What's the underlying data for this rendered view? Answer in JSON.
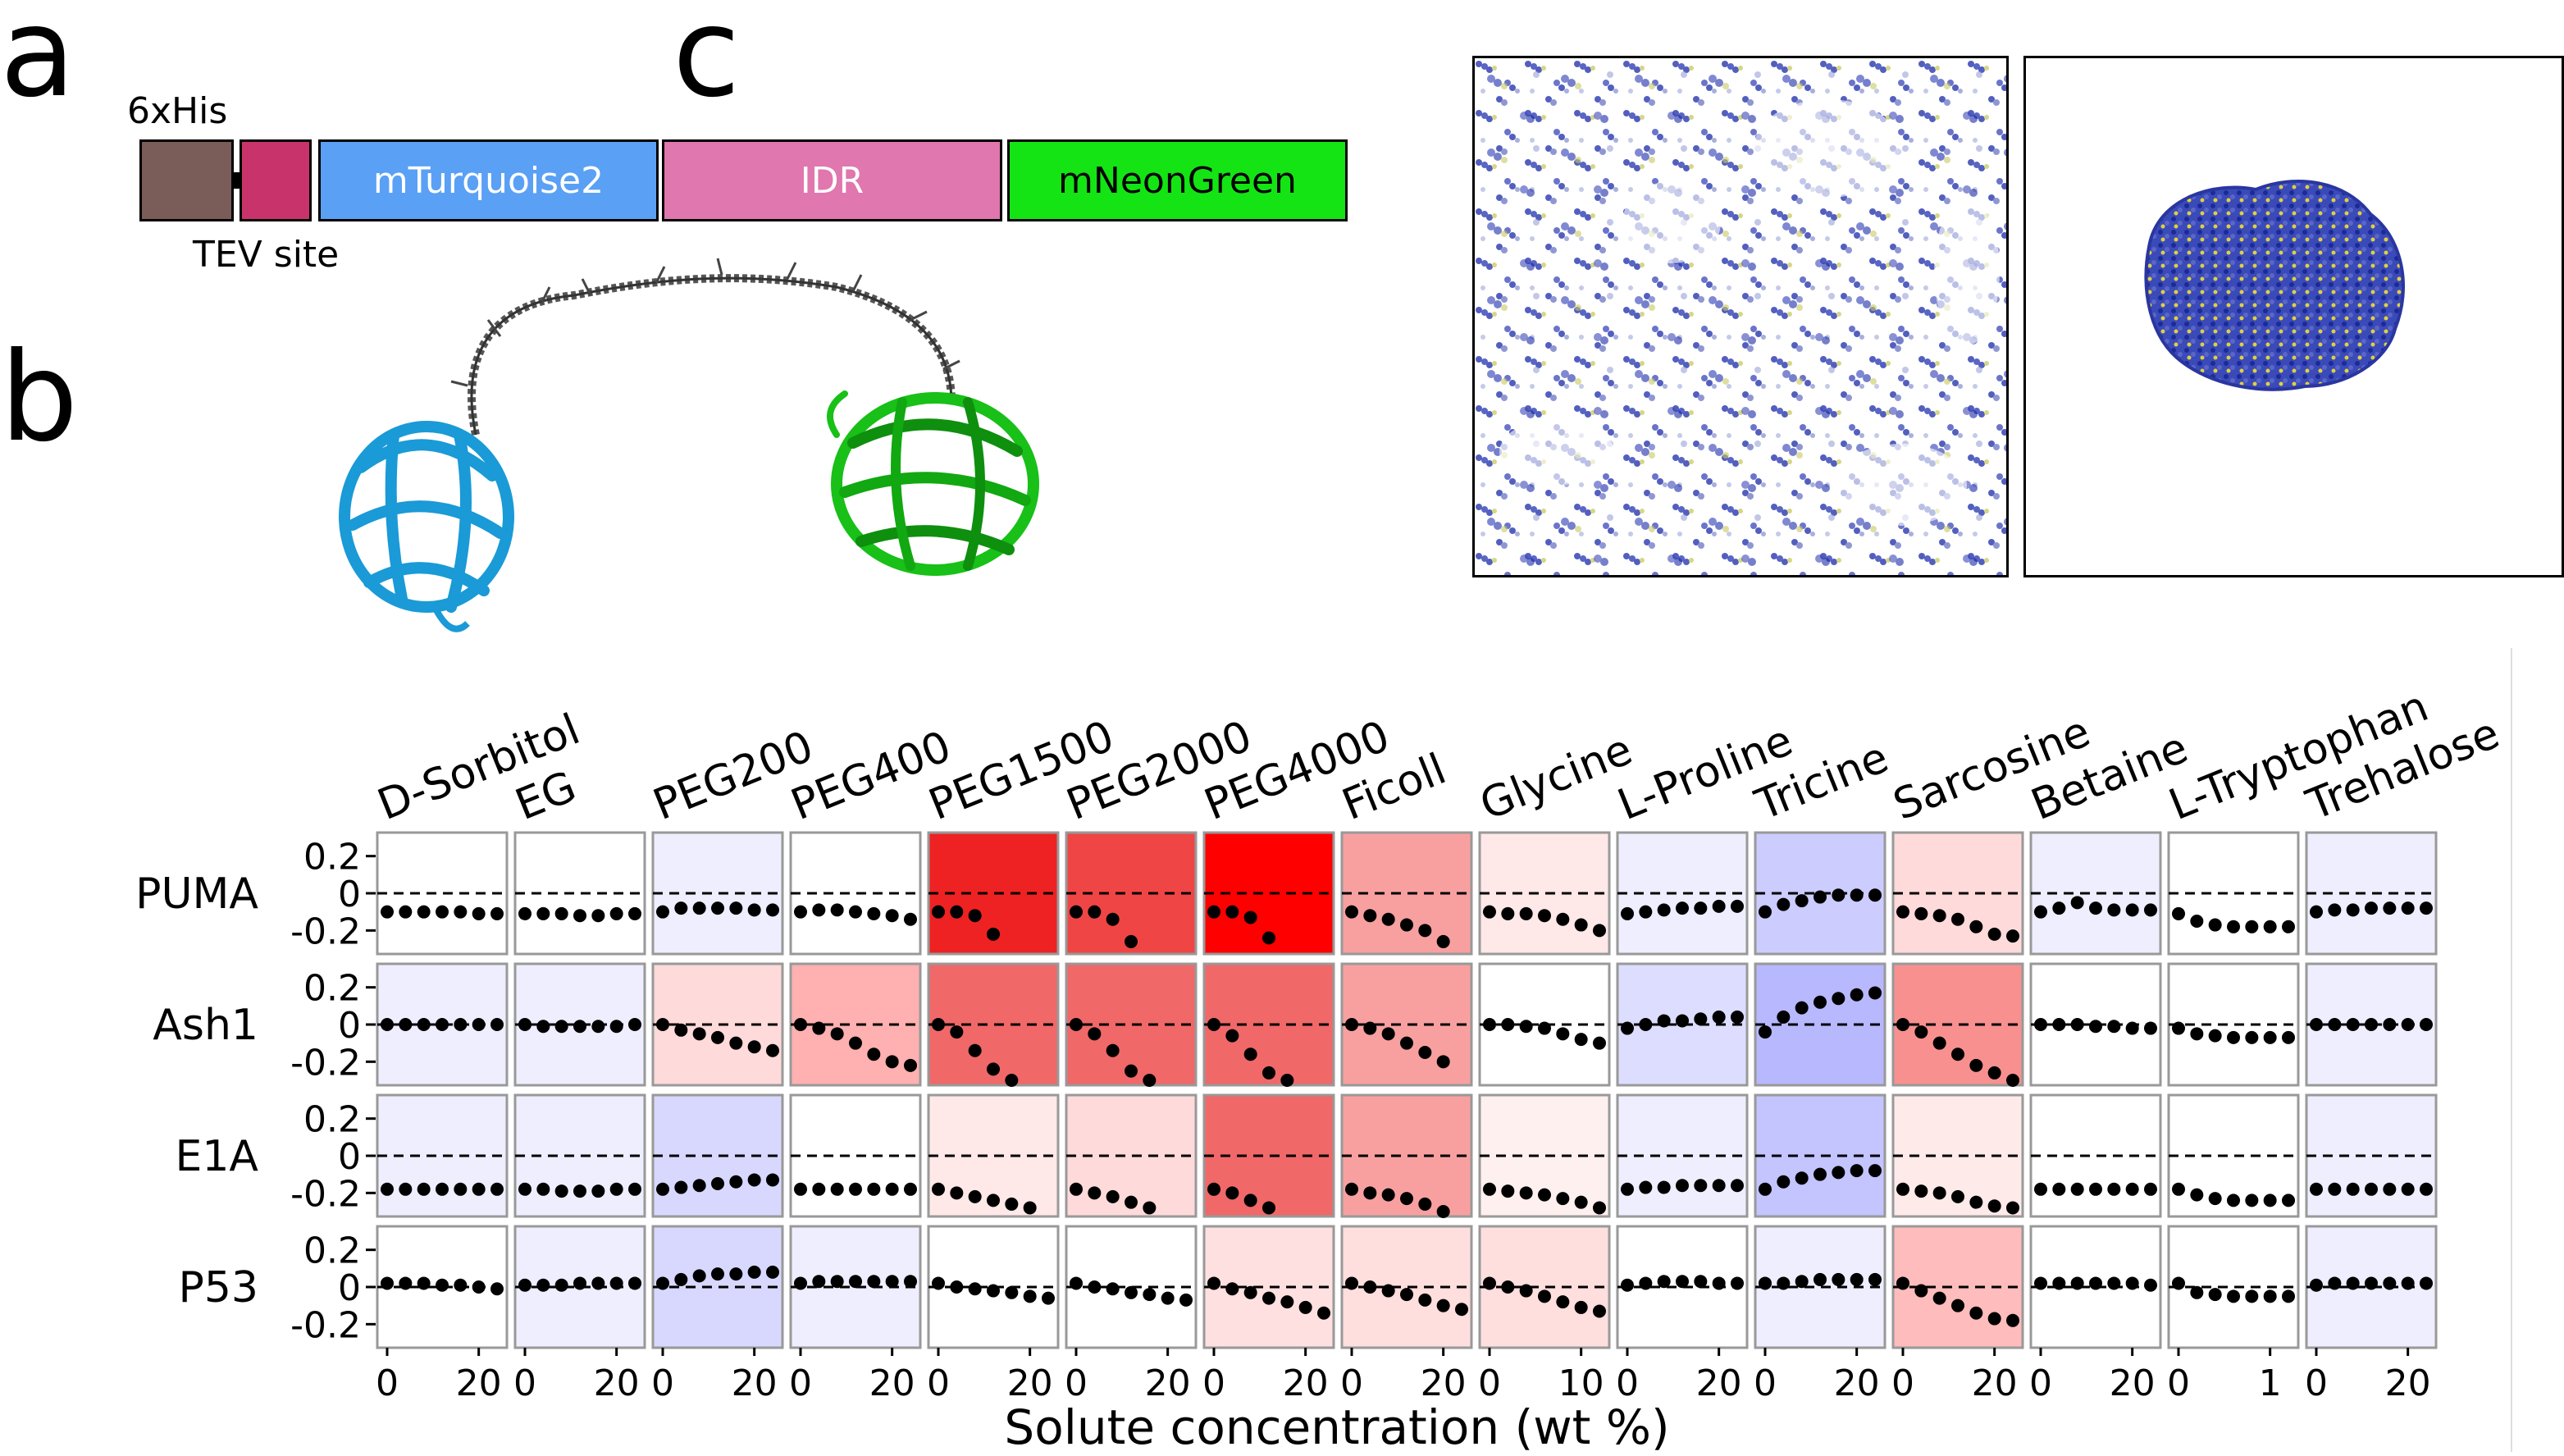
{
  "panels": {
    "a": "a",
    "b": "b",
    "c": "c"
  },
  "construct": {
    "his_label": "6xHis",
    "tev_label": "TEV site",
    "segments": [
      {
        "label": "",
        "color": "#7a5c58"
      },
      {
        "label": "",
        "color": "#c8336b"
      },
      {
        "label": "mTurquoise2",
        "color": "#5aa0f5"
      },
      {
        "label": "IDR",
        "color": "#e077ae"
      },
      {
        "label": "mNeonGreen",
        "color": "#14e414"
      }
    ]
  },
  "chart_data": {
    "type": "scatter",
    "xlabel": "Solute concentration (wt %)",
    "columns": [
      "D-Sorbitol",
      "EG",
      "PEG200",
      "PEG400",
      "PEG1500",
      "PEG2000",
      "PEG4000",
      "Ficoll",
      "Glycine",
      "L-Proline",
      "Tricine",
      "Sarcosine",
      "Betaine",
      "L-Tryptophan",
      "Trehalose"
    ],
    "rows": [
      "PUMA",
      "Ash1",
      "E1A",
      "P53"
    ],
    "yticks": [
      "0.2",
      "0",
      "-0.2"
    ],
    "ylim": [
      -0.3,
      0.3
    ],
    "x_ticks": [
      [
        "0",
        "20"
      ],
      [
        "0",
        "20"
      ],
      [
        "0",
        "20"
      ],
      [
        "0",
        "20"
      ],
      [
        "0",
        "20"
      ],
      [
        "0",
        "20"
      ],
      [
        "0",
        "20"
      ],
      [
        "0",
        "20"
      ],
      [
        "0",
        "10"
      ],
      [
        "0",
        "20"
      ],
      [
        "0",
        "20"
      ],
      [
        "0",
        "20"
      ],
      [
        "0",
        "20"
      ],
      [
        "0",
        "1"
      ],
      [
        "0",
        "20"
      ]
    ],
    "cells": [
      [
        {
          "bg": "#ffffff",
          "y": [
            -0.1,
            -0.1,
            -0.1,
            -0.1,
            -0.1,
            -0.11,
            -0.11
          ]
        },
        {
          "bg": "#ffffff",
          "y": [
            -0.11,
            -0.11,
            -0.11,
            -0.12,
            -0.12,
            -0.11,
            -0.11
          ]
        },
        {
          "bg": "#eeeeff",
          "y": [
            -0.1,
            -0.08,
            -0.08,
            -0.08,
            -0.08,
            -0.09,
            -0.09
          ]
        },
        {
          "bg": "#ffffff",
          "y": [
            -0.1,
            -0.09,
            -0.09,
            -0.1,
            -0.11,
            -0.12,
            -0.14
          ]
        },
        {
          "bg": "#ee2222",
          "y": [
            -0.1,
            -0.1,
            -0.12,
            -0.22
          ]
        },
        {
          "bg": "#f04545",
          "y": [
            -0.1,
            -0.1,
            -0.14,
            -0.26
          ]
        },
        {
          "bg": "#ff0000",
          "y": [
            -0.1,
            -0.1,
            -0.13,
            -0.24
          ]
        },
        {
          "bg": "#f8a0a0",
          "y": [
            -0.1,
            -0.12,
            -0.14,
            -0.17,
            -0.2,
            -0.26
          ]
        },
        {
          "bg": "#ffe8e8",
          "y": [
            -0.1,
            -0.11,
            -0.11,
            -0.12,
            -0.14,
            -0.17,
            -0.2
          ]
        },
        {
          "bg": "#eeeeff",
          "y": [
            -0.11,
            -0.1,
            -0.09,
            -0.08,
            -0.08,
            -0.07,
            -0.07
          ]
        },
        {
          "bg": "#ccccff",
          "y": [
            -0.1,
            -0.06,
            -0.04,
            -0.02,
            -0.01,
            -0.01,
            -0.01
          ]
        },
        {
          "bg": "#ffdada",
          "y": [
            -0.1,
            -0.11,
            -0.12,
            -0.14,
            -0.18,
            -0.22,
            -0.23
          ]
        },
        {
          "bg": "#eeeeff",
          "y": [
            -0.1,
            -0.08,
            -0.05,
            -0.08,
            -0.09,
            -0.09,
            -0.09
          ]
        },
        {
          "bg": "#ffffff",
          "y": [
            -0.11,
            -0.15,
            -0.17,
            -0.18,
            -0.18,
            -0.18,
            -0.18
          ]
        },
        {
          "bg": "#eeeeff",
          "y": [
            -0.1,
            -0.09,
            -0.09,
            -0.08,
            -0.08,
            -0.08,
            -0.08
          ]
        }
      ],
      [
        {
          "bg": "#eeeeff",
          "y": [
            0.0,
            0.0,
            0.0,
            0.0,
            0.0,
            0.0,
            0.0
          ]
        },
        {
          "bg": "#eeeeff",
          "y": [
            0.0,
            -0.01,
            -0.01,
            -0.01,
            -0.01,
            -0.01,
            0.0
          ]
        },
        {
          "bg": "#ffdada",
          "y": [
            0.0,
            -0.03,
            -0.05,
            -0.07,
            -0.1,
            -0.12,
            -0.14
          ]
        },
        {
          "bg": "#ffb0b0",
          "y": [
            0.0,
            -0.02,
            -0.05,
            -0.1,
            -0.16,
            -0.2,
            -0.22
          ]
        },
        {
          "bg": "#f06868",
          "y": [
            0.0,
            -0.04,
            -0.14,
            -0.24,
            -0.3
          ]
        },
        {
          "bg": "#f06868",
          "y": [
            0.0,
            -0.05,
            -0.14,
            -0.25,
            -0.3
          ]
        },
        {
          "bg": "#f06868",
          "y": [
            0.0,
            -0.06,
            -0.16,
            -0.26,
            -0.3
          ]
        },
        {
          "bg": "#f8a0a0",
          "y": [
            0.0,
            -0.02,
            -0.05,
            -0.1,
            -0.15,
            -0.2
          ]
        },
        {
          "bg": "#ffffff",
          "y": [
            0.0,
            0.0,
            -0.01,
            -0.02,
            -0.05,
            -0.08,
            -0.1
          ]
        },
        {
          "bg": "#ddddff",
          "y": [
            -0.02,
            0.0,
            0.02,
            0.02,
            0.03,
            0.04,
            0.04
          ]
        },
        {
          "bg": "#b8b8ff",
          "y": [
            -0.04,
            0.04,
            0.09,
            0.12,
            0.14,
            0.16,
            0.17
          ]
        },
        {
          "bg": "#f89090",
          "y": [
            0.0,
            -0.04,
            -0.1,
            -0.16,
            -0.22,
            -0.26,
            -0.3
          ]
        },
        {
          "bg": "#ffffff",
          "y": [
            0.0,
            0.0,
            0.0,
            -0.01,
            -0.01,
            -0.02,
            -0.02
          ]
        },
        {
          "bg": "#ffffff",
          "y": [
            -0.02,
            -0.05,
            -0.06,
            -0.07,
            -0.07,
            -0.07,
            -0.07
          ]
        },
        {
          "bg": "#eeeeff",
          "y": [
            0.0,
            0.0,
            0.0,
            0.0,
            0.0,
            0.0,
            0.0
          ]
        }
      ],
      [
        {
          "bg": "#eeeeff",
          "y": [
            -0.18,
            -0.18,
            -0.18,
            -0.18,
            -0.18,
            -0.18,
            -0.18
          ]
        },
        {
          "bg": "#eeeeff",
          "y": [
            -0.18,
            -0.18,
            -0.19,
            -0.19,
            -0.19,
            -0.18,
            -0.18
          ]
        },
        {
          "bg": "#d8d8ff",
          "y": [
            -0.18,
            -0.17,
            -0.16,
            -0.15,
            -0.14,
            -0.13,
            -0.13
          ]
        },
        {
          "bg": "#ffffff",
          "y": [
            -0.18,
            -0.18,
            -0.18,
            -0.18,
            -0.18,
            -0.18,
            -0.18
          ]
        },
        {
          "bg": "#ffe8e8",
          "y": [
            -0.18,
            -0.2,
            -0.22,
            -0.24,
            -0.26,
            -0.28
          ]
        },
        {
          "bg": "#ffdada",
          "y": [
            -0.18,
            -0.2,
            -0.22,
            -0.25,
            -0.28
          ]
        },
        {
          "bg": "#f06868",
          "y": [
            -0.18,
            -0.2,
            -0.24,
            -0.28
          ]
        },
        {
          "bg": "#f8a0a0",
          "y": [
            -0.18,
            -0.2,
            -0.21,
            -0.23,
            -0.26,
            -0.3
          ]
        },
        {
          "bg": "#fff0f0",
          "y": [
            -0.18,
            -0.19,
            -0.2,
            -0.21,
            -0.23,
            -0.25,
            -0.28
          ]
        },
        {
          "bg": "#eeeeff",
          "y": [
            -0.18,
            -0.17,
            -0.17,
            -0.16,
            -0.16,
            -0.16,
            -0.16
          ]
        },
        {
          "bg": "#c4c4ff",
          "y": [
            -0.18,
            -0.14,
            -0.12,
            -0.1,
            -0.09,
            -0.08,
            -0.08
          ]
        },
        {
          "bg": "#ffeaea",
          "y": [
            -0.18,
            -0.19,
            -0.2,
            -0.22,
            -0.25,
            -0.27,
            -0.28
          ]
        },
        {
          "bg": "#ffffff",
          "y": [
            -0.18,
            -0.18,
            -0.18,
            -0.18,
            -0.18,
            -0.18,
            -0.18
          ]
        },
        {
          "bg": "#ffffff",
          "y": [
            -0.18,
            -0.21,
            -0.23,
            -0.24,
            -0.24,
            -0.24,
            -0.24
          ]
        },
        {
          "bg": "#eeeeff",
          "y": [
            -0.18,
            -0.18,
            -0.18,
            -0.18,
            -0.18,
            -0.18,
            -0.18
          ]
        }
      ],
      [
        {
          "bg": "#ffffff",
          "y": [
            0.02,
            0.02,
            0.02,
            0.01,
            0.01,
            0.0,
            -0.01
          ]
        },
        {
          "bg": "#eeeeff",
          "y": [
            0.01,
            0.01,
            0.01,
            0.02,
            0.02,
            0.02,
            0.02
          ]
        },
        {
          "bg": "#d8d8ff",
          "y": [
            0.02,
            0.04,
            0.06,
            0.07,
            0.07,
            0.08,
            0.08
          ]
        },
        {
          "bg": "#eeeeff",
          "y": [
            0.02,
            0.03,
            0.03,
            0.03,
            0.03,
            0.03,
            0.03
          ]
        },
        {
          "bg": "#ffffff",
          "y": [
            0.02,
            0.0,
            -0.01,
            -0.02,
            -0.03,
            -0.05,
            -0.06
          ]
        },
        {
          "bg": "#ffffff",
          "y": [
            0.02,
            0.0,
            -0.01,
            -0.03,
            -0.04,
            -0.06,
            -0.07
          ]
        },
        {
          "bg": "#ffe0e0",
          "y": [
            0.02,
            -0.01,
            -0.03,
            -0.06,
            -0.08,
            -0.11,
            -0.14
          ]
        },
        {
          "bg": "#ffdede",
          "y": [
            0.02,
            0.0,
            -0.02,
            -0.04,
            -0.07,
            -0.1,
            -0.12
          ]
        },
        {
          "bg": "#ffdede",
          "y": [
            0.02,
            0.0,
            -0.02,
            -0.05,
            -0.08,
            -0.11,
            -0.13
          ]
        },
        {
          "bg": "#ffffff",
          "y": [
            0.01,
            0.02,
            0.03,
            0.03,
            0.03,
            0.02,
            0.02
          ]
        },
        {
          "bg": "#eeeeff",
          "y": [
            0.02,
            0.02,
            0.03,
            0.04,
            0.04,
            0.04,
            0.04
          ]
        },
        {
          "bg": "#ffbcbc",
          "y": [
            0.02,
            -0.02,
            -0.06,
            -0.1,
            -0.14,
            -0.17,
            -0.18
          ]
        },
        {
          "bg": "#ffffff",
          "y": [
            0.02,
            0.02,
            0.02,
            0.02,
            0.02,
            0.02,
            0.01
          ]
        },
        {
          "bg": "#ffffff",
          "y": [
            0.02,
            -0.03,
            -0.04,
            -0.05,
            -0.05,
            -0.05,
            -0.05
          ]
        },
        {
          "bg": "#eeeeff",
          "y": [
            0.01,
            0.02,
            0.02,
            0.02,
            0.02,
            0.02,
            0.02
          ]
        }
      ]
    ]
  }
}
